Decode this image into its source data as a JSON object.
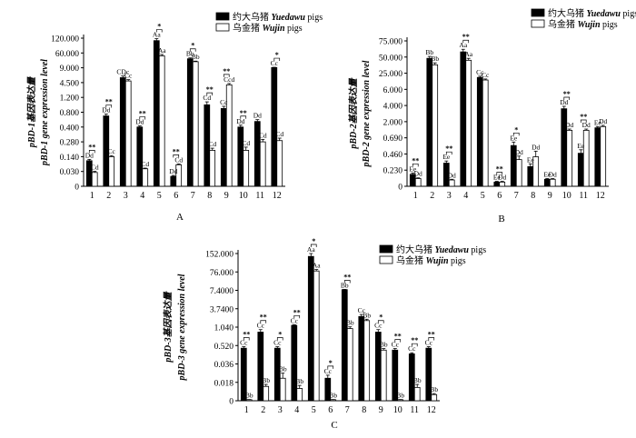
{
  "legend": {
    "yuedawu": {
      "cn": "约大乌猪",
      "en": "Yuedawu",
      "suffix": " pigs"
    },
    "wujin": {
      "cn": "乌金猪",
      "en": "Wujin",
      "suffix": " pigs"
    }
  },
  "colors": {
    "yuedawu": "#000000",
    "wujin": "#ffffff",
    "stroke": "#000000"
  },
  "chart_data": [
    {
      "id": "A",
      "type": "bar",
      "letter": "A",
      "ylabel_cn": "pBD-1基因表达量",
      "ylabel_en": "pBD-1 gene expression level",
      "yticks": [
        "0",
        "0.030",
        "0.140",
        "0.280",
        "0.400",
        "0.800",
        "1.200",
        "4.500",
        "9.000",
        "60.000",
        "120.000"
      ],
      "categories": [
        "1",
        "2",
        "3",
        "4",
        "5",
        "6",
        "7",
        "8",
        "9",
        "10",
        "11",
        "12"
      ],
      "series": [
        {
          "name": "约大乌猪 Yuedawu pigs",
          "values": [
            0.11,
            0.7,
            6.0,
            0.4,
            110,
            0.02,
            40,
            1.0,
            0.9,
            0.4,
            0.55,
            10.0
          ],
          "errors": [
            0.01,
            0.05,
            0.5,
            0.03,
            8,
            0.002,
            3,
            0.08,
            0.06,
            0.05,
            0.05,
            0.7
          ]
        },
        {
          "name": "乌金猪 Wujin pigs",
          "values": [
            0.028,
            0.14,
            5.0,
            0.05,
            50,
            0.08,
            30,
            0.2,
            4.0,
            0.2,
            0.28,
            0.29
          ],
          "errors": [
            0.003,
            0.01,
            0.4,
            0.005,
            5,
            0.006,
            2,
            0.02,
            0.3,
            0.03,
            0.02,
            0.02
          ]
        }
      ],
      "labels": {
        "yuedawu": [
          "Dd",
          "Dd",
          "CDc",
          "Dd",
          "Aa",
          "Dd",
          "Bb",
          "Cd",
          "Cc",
          "Dd",
          "Dd",
          "Cc"
        ],
        "wujin": [
          "Cd",
          "Cc",
          "Cc",
          "Cd",
          "Aa",
          "Cd",
          "Bb",
          "Cd",
          "Ccd",
          "Cd",
          "Cd",
          "Cd"
        ]
      },
      "sig": [
        "**",
        "**",
        "",
        "**",
        "*",
        "**",
        "*",
        "**",
        "**",
        "**",
        "",
        "*"
      ]
    },
    {
      "id": "B",
      "type": "bar",
      "letter": "B",
      "ylabel_cn": "pBD-2基因表达量",
      "ylabel_en": "pBD-2 gene expression level",
      "yticks": [
        "0",
        "0.230",
        "0.460",
        "0.690",
        "2.000",
        "4.000",
        "6.000",
        "25.000",
        "50.000",
        "75.000"
      ],
      "categories": [
        "1",
        "2",
        "3",
        "4",
        "5",
        "6",
        "7",
        "8",
        "9",
        "10",
        "11",
        "12"
      ],
      "series": [
        {
          "name": "约大乌猪 Yuedawu pigs",
          "values": [
            0.17,
            48,
            0.33,
            58,
            20,
            0.06,
            0.58,
            0.28,
            0.1,
            3.6,
            0.47,
            1.5
          ],
          "errors": [
            0.02,
            3,
            0.03,
            4,
            1.5,
            0.01,
            0.05,
            0.04,
            0.01,
            0.3,
            0.05,
            0.1
          ]
        },
        {
          "name": "乌金猪 Wujin pigs",
          "values": [
            0.11,
            38,
            0.09,
            45,
            17,
            0.06,
            0.38,
            0.42,
            0.1,
            1.3,
            1.3,
            1.6
          ],
          "errors": [
            0.01,
            3,
            0.01,
            3,
            1.2,
            0.01,
            0.05,
            0.08,
            0.01,
            0.1,
            0.1,
            0.1
          ]
        }
      ],
      "labels": {
        "yuedawu": [
          "Ee",
          "Bb",
          "Ee",
          "Aa",
          "Cc",
          "Ee",
          "Ee",
          "Ee",
          "Ee",
          "Dd",
          "Ee",
          "Ee"
        ],
        "wujin": [
          "Dd",
          "Bb",
          "Dd",
          "Aa",
          "Cc",
          "Dd",
          "Dd",
          "Dd",
          "Dd",
          "Dd",
          "Dd",
          "Dd"
        ]
      },
      "sig": [
        "**",
        "",
        "**",
        "**",
        "",
        "**",
        "*",
        "",
        "",
        "**",
        "**",
        ""
      ]
    },
    {
      "id": "C",
      "type": "bar",
      "letter": "C",
      "ylabel_cn": "pBD-3基因表达量",
      "ylabel_en": "pBD-3 gene expression level",
      "yticks": [
        "0",
        "0.018",
        "0.036",
        "0.520",
        "1.040",
        "3.7400",
        "7.4000",
        "76.000",
        "152.000"
      ],
      "categories": [
        "1",
        "2",
        "3",
        "4",
        "5",
        "6",
        "7",
        "8",
        "9",
        "10",
        "11",
        "12"
      ],
      "series": [
        {
          "name": "约大乌猪 Yuedawu pigs",
          "values": [
            0.45,
            0.9,
            0.45,
            1.3,
            140,
            0.022,
            10.0,
            2.6,
            0.9,
            0.4,
            0.3,
            0.45
          ],
          "errors": [
            0.04,
            0.07,
            0.04,
            0.1,
            12,
            0.003,
            0.8,
            0.3,
            0.07,
            0.04,
            0.03,
            0.04
          ]
        },
        {
          "name": "乌金猪 Wujin pigs",
          "values": [
            0.001,
            0.014,
            0.022,
            0.012,
            80,
            0.001,
            1.0,
            2.0,
            0.4,
            0.001,
            0.013,
            0.006
          ],
          "errors": [
            0.0002,
            0.002,
            0.005,
            0.003,
            6,
            0.0002,
            0.08,
            0.2,
            0.04,
            0.0002,
            0.003,
            0.001
          ]
        }
      ],
      "labels": {
        "yuedawu": [
          "Cc",
          "Cc",
          "Cc",
          "Cc",
          "Aa",
          "Cc",
          "Bb",
          "Cc",
          "Cc",
          "Cc",
          "Cc",
          "Cc"
        ],
        "wujin": [
          "Bb",
          "Bb",
          "Bb",
          "Bb",
          "Aa",
          "Bb",
          "Bb",
          "Bb",
          "Bb",
          "Bb",
          "Bb",
          "Bb"
        ]
      },
      "sig": [
        "**",
        "**",
        "*",
        "**",
        "*",
        "*",
        "**",
        "",
        "*",
        "**",
        "**",
        "**"
      ]
    }
  ]
}
